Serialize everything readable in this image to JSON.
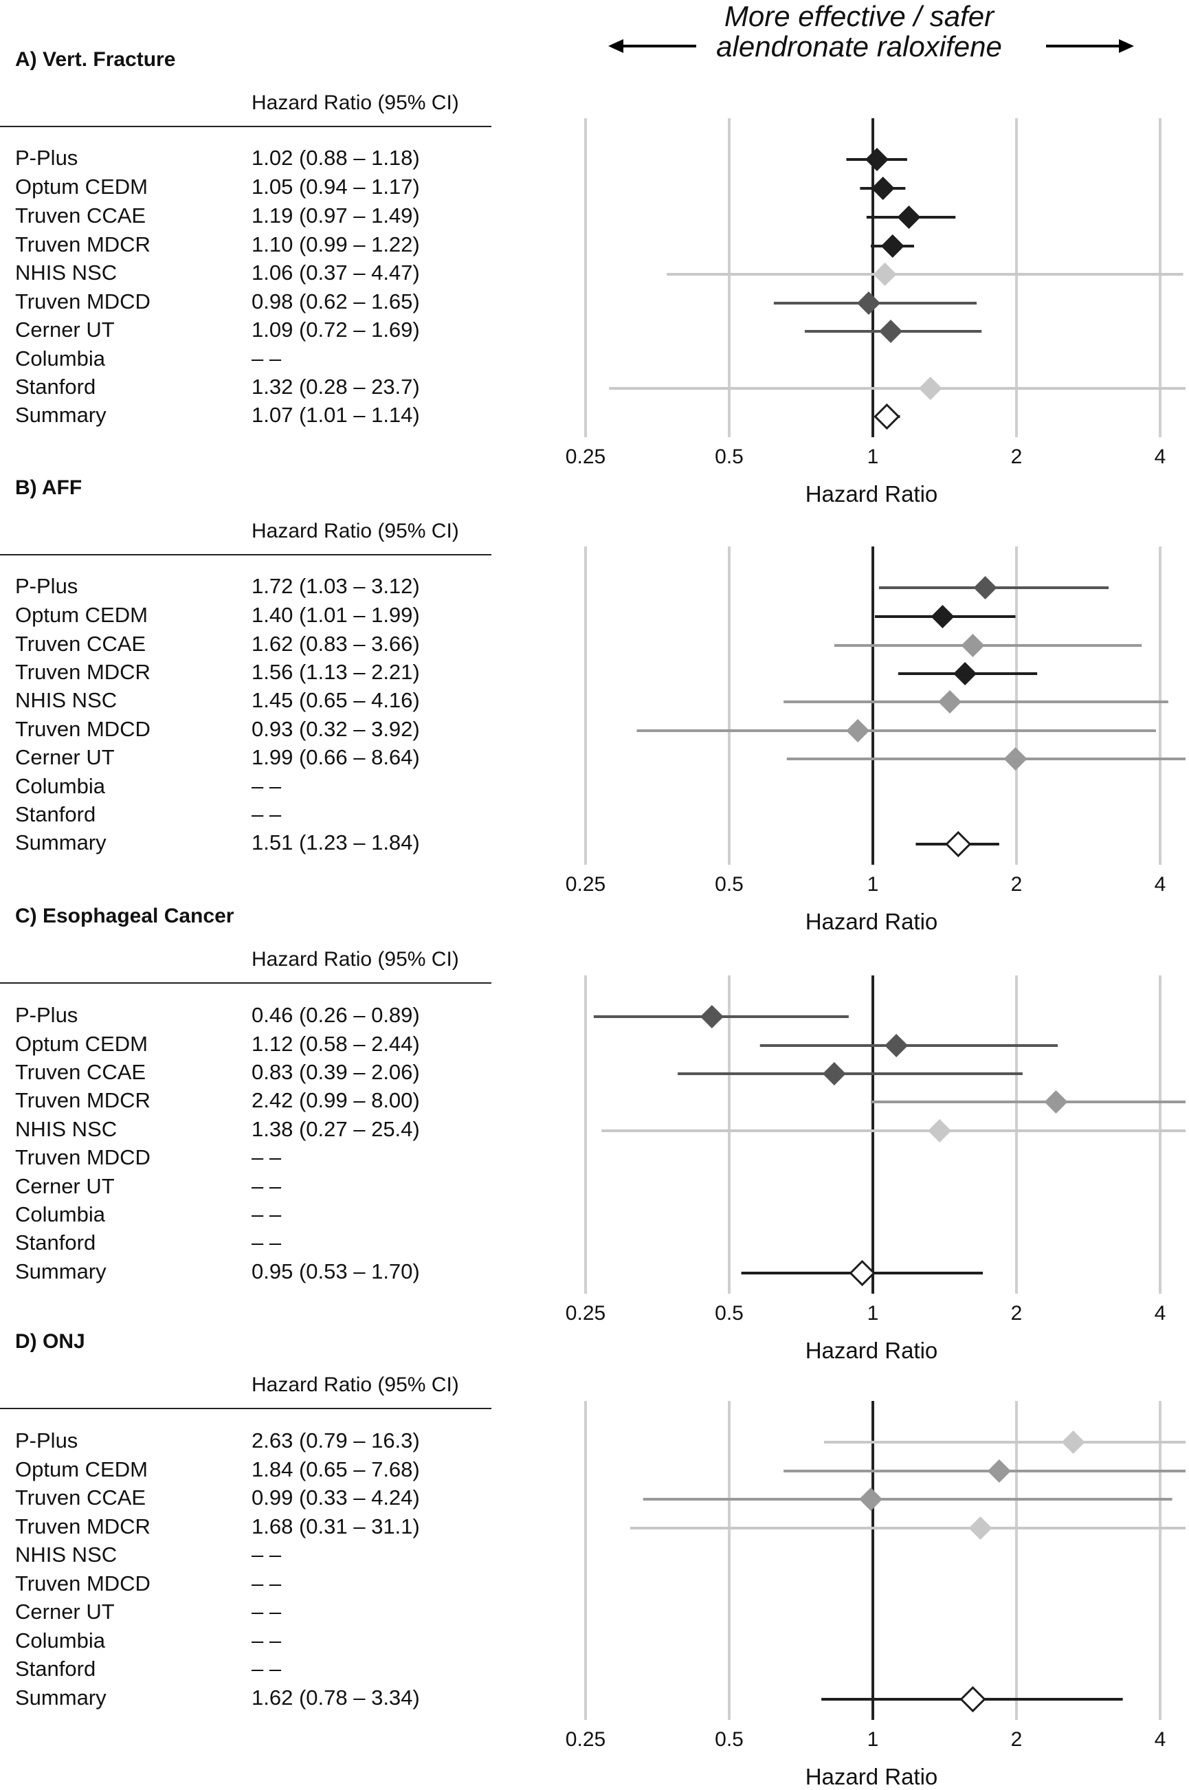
{
  "header": {
    "line1": "More effective / safer",
    "line2": "alendronate  raloxifene"
  },
  "x_axis_label": "Hazard Ratio",
  "hr_column_header": "Hazard Ratio (95% CI)",
  "tick_labels": [
    "0.25",
    "0.5",
    "1",
    "2",
    "4"
  ],
  "colors": {
    "dark": "#1e1e1e",
    "mid": "#555555",
    "light": "#999999",
    "faint": "#c8c8c8",
    "grid": "#cfcfcf"
  },
  "chart_data": [
    {
      "type": "forest",
      "title": "A) Vert. Fracture",
      "xlabel": "Hazard Ratio",
      "xscale": "log2",
      "xlim": [
        0.25,
        4.3
      ],
      "ticks": [
        0.25,
        0.5,
        1,
        2,
        4
      ],
      "rows": [
        {
          "study": "P-Plus",
          "hr_text": "1.02 (0.88 – 1.18)",
          "hr": 1.02,
          "lo": 0.88,
          "hi": 1.18,
          "shade": "dark"
        },
        {
          "study": "Optum CEDM",
          "hr_text": "1.05 (0.94 – 1.17)",
          "hr": 1.05,
          "lo": 0.94,
          "hi": 1.17,
          "shade": "dark"
        },
        {
          "study": "Truven CCAE",
          "hr_text": "1.19 (0.97 – 1.49)",
          "hr": 1.19,
          "lo": 0.97,
          "hi": 1.49,
          "shade": "dark"
        },
        {
          "study": "Truven MDCR",
          "hr_text": "1.10 (0.99 – 1.22)",
          "hr": 1.1,
          "lo": 0.99,
          "hi": 1.22,
          "shade": "dark"
        },
        {
          "study": "NHIS NSC",
          "hr_text": "1.06 (0.37 – 4.47)",
          "hr": 1.06,
          "lo": 0.37,
          "hi": 4.47,
          "shade": "faint"
        },
        {
          "study": "Truven MDCD",
          "hr_text": "0.98 (0.62 – 1.65)",
          "hr": 0.98,
          "lo": 0.62,
          "hi": 1.65,
          "shade": "mid"
        },
        {
          "study": "Cerner UT",
          "hr_text": "1.09 (0.72 – 1.69)",
          "hr": 1.09,
          "lo": 0.72,
          "hi": 1.69,
          "shade": "mid"
        },
        {
          "study": "Columbia",
          "hr_text": "– –",
          "hr": null,
          "lo": null,
          "hi": null,
          "shade": "none"
        },
        {
          "study": "Stanford",
          "hr_text": "1.32 (0.28 – 23.7)",
          "hr": 1.32,
          "lo": 0.28,
          "hi": 23.7,
          "shade": "faint"
        },
        {
          "study": "Summary",
          "hr_text": "1.07 (1.01 – 1.14)",
          "hr": 1.07,
          "lo": 1.01,
          "hi": 1.14,
          "shade": "summary"
        }
      ]
    },
    {
      "type": "forest",
      "title": "B) AFF",
      "xlabel": "Hazard Ratio",
      "xscale": "log2",
      "xlim": [
        0.25,
        4.3
      ],
      "ticks": [
        0.25,
        0.5,
        1,
        2,
        4
      ],
      "rows": [
        {
          "study": "P-Plus",
          "hr_text": "1.72 (1.03 – 3.12)",
          "hr": 1.72,
          "lo": 1.03,
          "hi": 3.12,
          "shade": "mid"
        },
        {
          "study": "Optum CEDM",
          "hr_text": "1.40 (1.01 – 1.99)",
          "hr": 1.4,
          "lo": 1.01,
          "hi": 1.99,
          "shade": "dark"
        },
        {
          "study": "Truven CCAE",
          "hr_text": "1.62 (0.83 – 3.66)",
          "hr": 1.62,
          "lo": 0.83,
          "hi": 3.66,
          "shade": "light"
        },
        {
          "study": "Truven MDCR",
          "hr_text": "1.56 (1.13 – 2.21)",
          "hr": 1.56,
          "lo": 1.13,
          "hi": 2.21,
          "shade": "dark"
        },
        {
          "study": "NHIS NSC",
          "hr_text": "1.45 (0.65 – 4.16)",
          "hr": 1.45,
          "lo": 0.65,
          "hi": 4.16,
          "shade": "light"
        },
        {
          "study": "Truven MDCD",
          "hr_text": "0.93 (0.32 – 3.92)",
          "hr": 0.93,
          "lo": 0.32,
          "hi": 3.92,
          "shade": "light"
        },
        {
          "study": "Cerner UT",
          "hr_text": "1.99 (0.66 – 8.64)",
          "hr": 1.99,
          "lo": 0.66,
          "hi": 8.64,
          "shade": "light"
        },
        {
          "study": "Columbia",
          "hr_text": "– –",
          "hr": null,
          "lo": null,
          "hi": null,
          "shade": "none"
        },
        {
          "study": "Stanford",
          "hr_text": "– –",
          "hr": null,
          "lo": null,
          "hi": null,
          "shade": "none"
        },
        {
          "study": "Summary",
          "hr_text": "1.51 (1.23 – 1.84)",
          "hr": 1.51,
          "lo": 1.23,
          "hi": 1.84,
          "shade": "summary"
        }
      ]
    },
    {
      "type": "forest",
      "title": "C) Esophageal Cancer",
      "xlabel": "Hazard Ratio",
      "xscale": "log2",
      "xlim": [
        0.25,
        4.3
      ],
      "ticks": [
        0.25,
        0.5,
        1,
        2,
        4
      ],
      "rows": [
        {
          "study": "P-Plus",
          "hr_text": "0.46 (0.26 – 0.89)",
          "hr": 0.46,
          "lo": 0.26,
          "hi": 0.89,
          "shade": "mid"
        },
        {
          "study": "Optum CEDM",
          "hr_text": "1.12 (0.58 – 2.44)",
          "hr": 1.12,
          "lo": 0.58,
          "hi": 2.44,
          "shade": "mid"
        },
        {
          "study": "Truven CCAE",
          "hr_text": "0.83 (0.39 – 2.06)",
          "hr": 0.83,
          "lo": 0.39,
          "hi": 2.06,
          "shade": "mid"
        },
        {
          "study": "Truven MDCR",
          "hr_text": "2.42 (0.99 – 8.00)",
          "hr": 2.42,
          "lo": 0.99,
          "hi": 8.0,
          "shade": "light"
        },
        {
          "study": "NHIS NSC",
          "hr_text": "1.38 (0.27 – 25.4)",
          "hr": 1.38,
          "lo": 0.27,
          "hi": 25.4,
          "shade": "faint"
        },
        {
          "study": "Truven MDCD",
          "hr_text": "– –",
          "hr": null,
          "lo": null,
          "hi": null,
          "shade": "none"
        },
        {
          "study": "Cerner UT",
          "hr_text": "– –",
          "hr": null,
          "lo": null,
          "hi": null,
          "shade": "none"
        },
        {
          "study": "Columbia",
          "hr_text": "– –",
          "hr": null,
          "lo": null,
          "hi": null,
          "shade": "none"
        },
        {
          "study": "Stanford",
          "hr_text": "– –",
          "hr": null,
          "lo": null,
          "hi": null,
          "shade": "none"
        },
        {
          "study": "Summary",
          "hr_text": "0.95 (0.53 – 1.70)",
          "hr": 0.95,
          "lo": 0.53,
          "hi": 1.7,
          "shade": "summary"
        }
      ]
    },
    {
      "type": "forest",
      "title": "D) ONJ",
      "xlabel": "Hazard Ratio",
      "xscale": "log2",
      "xlim": [
        0.25,
        4.3
      ],
      "ticks": [
        0.25,
        0.5,
        1,
        2,
        4
      ],
      "rows": [
        {
          "study": "P-Plus",
          "hr_text": "2.63 (0.79 – 16.3)",
          "hr": 2.63,
          "lo": 0.79,
          "hi": 16.3,
          "shade": "faint"
        },
        {
          "study": "Optum CEDM",
          "hr_text": "1.84 (0.65 – 7.68)",
          "hr": 1.84,
          "lo": 0.65,
          "hi": 7.68,
          "shade": "light"
        },
        {
          "study": "Truven CCAE",
          "hr_text": "0.99 (0.33 – 4.24)",
          "hr": 0.99,
          "lo": 0.33,
          "hi": 4.24,
          "shade": "light"
        },
        {
          "study": "Truven MDCR",
          "hr_text": "1.68 (0.31 – 31.1)",
          "hr": 1.68,
          "lo": 0.31,
          "hi": 31.1,
          "shade": "faint"
        },
        {
          "study": "NHIS NSC",
          "hr_text": "– –",
          "hr": null,
          "lo": null,
          "hi": null,
          "shade": "none"
        },
        {
          "study": "Truven MDCD",
          "hr_text": "– –",
          "hr": null,
          "lo": null,
          "hi": null,
          "shade": "none"
        },
        {
          "study": "Cerner UT",
          "hr_text": "– –",
          "hr": null,
          "lo": null,
          "hi": null,
          "shade": "none"
        },
        {
          "study": "Columbia",
          "hr_text": "– –",
          "hr": null,
          "lo": null,
          "hi": null,
          "shade": "none"
        },
        {
          "study": "Stanford",
          "hr_text": "– –",
          "hr": null,
          "lo": null,
          "hi": null,
          "shade": "none"
        },
        {
          "study": "Summary",
          "hr_text": "1.62 (0.78 – 3.34)",
          "hr": 1.62,
          "lo": 0.78,
          "hi": 3.34,
          "shade": "summary"
        }
      ]
    }
  ]
}
